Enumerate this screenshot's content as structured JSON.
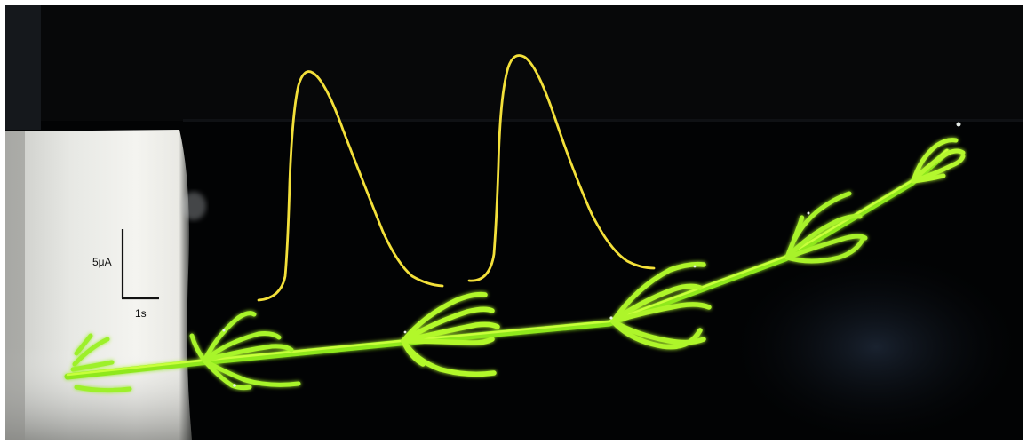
{
  "scale_bar": {
    "current_label": "5μA",
    "time_label": "1s"
  },
  "colors": {
    "background": "#020304",
    "wall_light": "#f2f2ee",
    "wall_shadow": "#9a9c98",
    "trace": "#f3e03a",
    "plant_bright": "#c8ff3a",
    "plant_mid": "#8fe81e",
    "plant_dark": "#55a80c",
    "scale_bar": "#111111"
  },
  "icons": {
    "plant": "horsetail-sprig",
    "trace": "current-trace"
  }
}
